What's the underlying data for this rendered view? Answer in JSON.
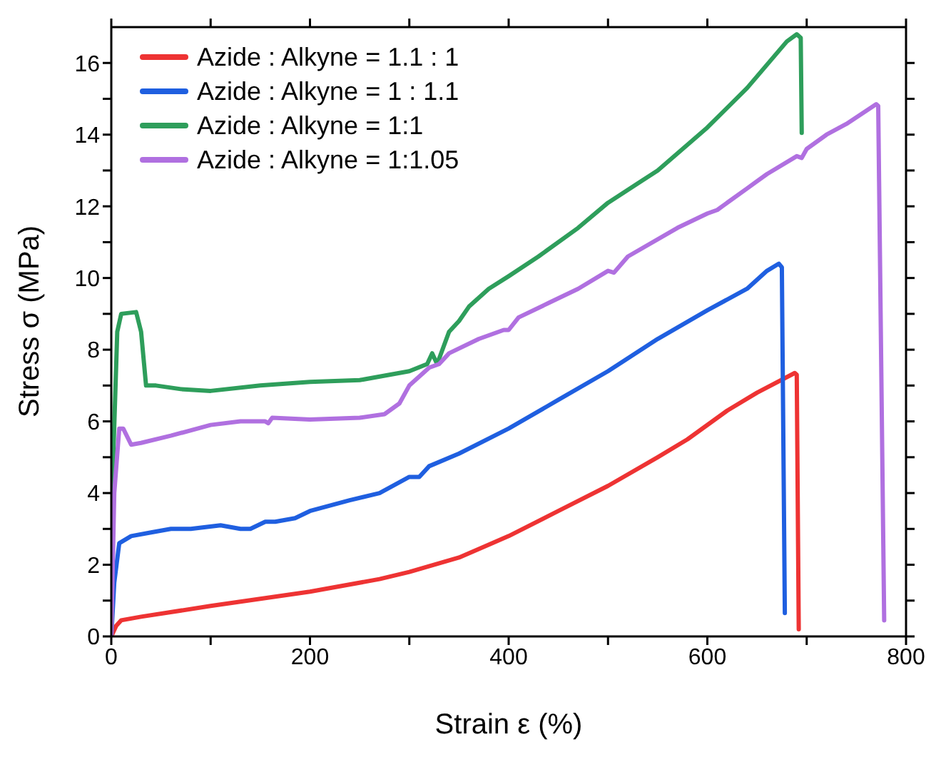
{
  "chart_data": {
    "type": "line",
    "xlabel": "Strain ε (%)",
    "ylabel": "Stress σ (MPa)",
    "xlim": [
      0,
      800
    ],
    "ylim": [
      0,
      17
    ],
    "xticks": [
      0,
      {
        "value": 100,
        "label": null
      },
      200,
      {
        "value": 300,
        "label": null
      },
      400,
      {
        "value": 500,
        "label": null
      },
      600,
      {
        "value": 700,
        "label": null
      },
      800
    ],
    "yticks": [
      0,
      {
        "value": 1,
        "label": null
      },
      2,
      {
        "value": 3,
        "label": null
      },
      4,
      {
        "value": 5,
        "label": null
      },
      6,
      {
        "value": 7,
        "label": null
      },
      8,
      {
        "value": 9,
        "label": null
      },
      10,
      {
        "value": 11,
        "label": null
      },
      12,
      {
        "value": 13,
        "label": null
      },
      14,
      {
        "value": 15,
        "label": null
      },
      16
    ],
    "legend": "top left",
    "marker": "none",
    "line_style": "solid",
    "series": [
      {
        "name": "Azide : Alkyne = 1.1 : 1",
        "color": "#ee3333",
        "x": [
          0,
          5,
          10,
          30,
          100,
          200,
          270,
          300,
          350,
          400,
          450,
          500,
          550,
          580,
          620,
          650,
          688,
          690,
          692
        ],
        "values": [
          0,
          0.3,
          0.45,
          0.55,
          0.85,
          1.25,
          1.6,
          1.8,
          2.2,
          2.8,
          3.5,
          4.2,
          5.0,
          5.5,
          6.3,
          6.8,
          7.35,
          7.3,
          0.2
        ]
      },
      {
        "name": "Azide : Alkyne = 1 : 1.1",
        "color": "#1f5fe0",
        "x": [
          0,
          3,
          8,
          20,
          40,
          60,
          80,
          110,
          130,
          140,
          155,
          165,
          185,
          200,
          240,
          270,
          300,
          310,
          320,
          350,
          400,
          450,
          500,
          550,
          600,
          640,
          660,
          672,
          675,
          678
        ],
        "values": [
          0,
          1.5,
          2.6,
          2.8,
          2.9,
          3.0,
          3.0,
          3.1,
          3.0,
          3.0,
          3.2,
          3.2,
          3.3,
          3.5,
          3.8,
          4.0,
          4.45,
          4.45,
          4.75,
          5.1,
          5.8,
          6.6,
          7.4,
          8.3,
          9.1,
          9.7,
          10.2,
          10.4,
          10.3,
          0.65
        ]
      },
      {
        "name": "Azide : Alkyne = 1:1",
        "color": "#2e9e5b",
        "x": [
          0,
          2,
          6,
          10,
          25,
          30,
          35,
          45,
          70,
          100,
          150,
          200,
          250,
          300,
          318,
          323,
          328,
          340,
          350,
          360,
          380,
          400,
          430,
          470,
          500,
          550,
          600,
          640,
          680,
          690,
          694,
          695
        ],
        "values": [
          0,
          5,
          8.5,
          9.0,
          9.05,
          8.5,
          7.0,
          7.0,
          6.9,
          6.85,
          7.0,
          7.1,
          7.15,
          7.4,
          7.6,
          7.9,
          7.6,
          8.5,
          8.8,
          9.2,
          9.7,
          10.05,
          10.6,
          11.4,
          12.1,
          13.0,
          14.2,
          15.3,
          16.6,
          16.8,
          16.7,
          14.05
        ]
      },
      {
        "name": "Azide : Alkyne = 1:1.05",
        "color": "#b070e0",
        "x": [
          0,
          3,
          8,
          12,
          20,
          30,
          60,
          100,
          130,
          155,
          158,
          162,
          200,
          250,
          275,
          290,
          300,
          320,
          330,
          340,
          370,
          395,
          400,
          410,
          440,
          470,
          500,
          506,
          520,
          570,
          600,
          610,
          640,
          660,
          690,
          695,
          700,
          720,
          740,
          770,
          772,
          778
        ],
        "values": [
          0,
          4,
          5.8,
          5.8,
          5.35,
          5.4,
          5.6,
          5.9,
          6.0,
          6.0,
          5.95,
          6.1,
          6.05,
          6.1,
          6.2,
          6.5,
          7.0,
          7.5,
          7.6,
          7.9,
          8.3,
          8.55,
          8.55,
          8.9,
          9.3,
          9.7,
          10.2,
          10.15,
          10.6,
          11.4,
          11.8,
          11.9,
          12.5,
          12.9,
          13.4,
          13.35,
          13.6,
          14.0,
          14.3,
          14.85,
          14.8,
          0.45
        ]
      }
    ]
  }
}
